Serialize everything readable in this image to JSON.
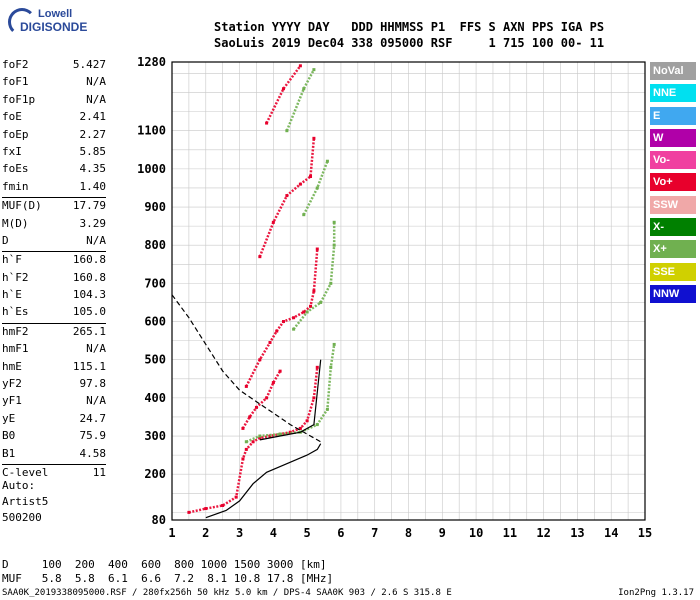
{
  "logo": {
    "line1": "Lowell",
    "line2": "DIGISONDE"
  },
  "header": {
    "line1": "Station YYYY DAY   DDD HHMMSS P1  FFS S AXN PPS IGA PS",
    "line2": "SaoLuis 2019 Dec04 338 095000 RSF     1 715 100 00- 11"
  },
  "params_groups": [
    [
      [
        "foF2",
        "5.427"
      ],
      [
        "foF1",
        "N/A"
      ],
      [
        "foF1p",
        "N/A"
      ],
      [
        "foE",
        "2.41"
      ],
      [
        "foEp",
        "2.27"
      ],
      [
        "fxI",
        "5.85"
      ],
      [
        "foEs",
        "4.35"
      ],
      [
        "fmin",
        "1.40"
      ]
    ],
    [
      [
        "MUF(D)",
        "17.79"
      ],
      [
        "M(D)",
        "3.29"
      ],
      [
        "D",
        "N/A"
      ]
    ],
    [
      [
        "h`F",
        "160.8"
      ],
      [
        "h`F2",
        "160.8"
      ],
      [
        "h`E",
        "104.3"
      ],
      [
        "h`Es",
        "105.0"
      ]
    ],
    [
      [
        "hmF2",
        "265.1"
      ],
      [
        "hmF1",
        "N/A"
      ],
      [
        "hmE",
        "115.1"
      ],
      [
        "yF2",
        "97.8"
      ],
      [
        "yF1",
        "N/A"
      ],
      [
        "yE",
        "24.7"
      ],
      [
        "B0",
        "75.9"
      ],
      [
        "B1",
        "4.58"
      ]
    ],
    [
      [
        "C-level",
        "11"
      ]
    ]
  ],
  "auto": {
    "line1": "Auto:",
    "line2": "Artist5",
    "line3": "500200"
  },
  "legend": [
    {
      "label": "NoVal",
      "color": "#a0a0a0"
    },
    {
      "label": "NNE",
      "color": "#00e0f0"
    },
    {
      "label": "E",
      "color": "#40a8f0"
    },
    {
      "label": "W",
      "color": "#b000a8"
    },
    {
      "label": "Vo-",
      "color": "#f040a0"
    },
    {
      "label": "Vo+",
      "color": "#e8002c"
    },
    {
      "label": "SSW",
      "color": "#f0a8a8"
    },
    {
      "label": "X-",
      "color": "#008000"
    },
    {
      "label": "X+",
      "color": "#70b050"
    },
    {
      "label": "SSE",
      "color": "#d0d000"
    },
    {
      "label": "NNW",
      "color": "#1010d0"
    }
  ],
  "footer": {
    "line1": "D     100  200  400  600  800 1000 1500 3000 [km]",
    "line2": "MUF   5.8  5.8  6.1  6.6  7.2  8.1 10.8 17.8 [MHz]",
    "bottom": "SAA0K_2019338095000.RSF / 280fx256h 50 kHz 5.0 km / DPS-4 SAA0K 903 / 2.6 S 315.8 E",
    "version": "Ion2Png 1.3.17"
  },
  "chart_data": {
    "type": "scatter",
    "xlim": [
      1,
      15
    ],
    "ylim": [
      80,
      1280
    ],
    "x_ticks": [
      1,
      2,
      3,
      4,
      5,
      6,
      7,
      8,
      9,
      10,
      11,
      12,
      13,
      14,
      15
    ],
    "y_ticks": [
      80,
      200,
      300,
      400,
      500,
      600,
      700,
      800,
      900,
      1000,
      1100,
      1280
    ],
    "grid": true,
    "traces": [
      {
        "name": "Vo+",
        "points": [
          [
            1.5,
            100
          ],
          [
            2.0,
            110
          ],
          [
            2.5,
            118
          ],
          [
            2.9,
            140
          ],
          [
            3.1,
            240
          ],
          [
            3.2,
            265
          ],
          [
            3.4,
            285
          ],
          [
            3.6,
            295
          ],
          [
            3.9,
            300
          ],
          [
            4.2,
            305
          ],
          [
            4.5,
            310
          ],
          [
            4.8,
            320
          ],
          [
            5.0,
            340
          ],
          [
            5.2,
            400
          ],
          [
            5.3,
            480
          ]
        ]
      },
      {
        "name": "Vo+",
        "points": [
          [
            3.1,
            320
          ],
          [
            3.3,
            350
          ],
          [
            3.5,
            375
          ],
          [
            3.8,
            400
          ],
          [
            4.0,
            440
          ],
          [
            4.2,
            470
          ]
        ]
      },
      {
        "name": "Vo+",
        "points": [
          [
            3.2,
            430
          ],
          [
            3.6,
            500
          ],
          [
            3.9,
            545
          ],
          [
            4.1,
            575
          ],
          [
            4.3,
            600
          ],
          [
            4.6,
            610
          ],
          [
            4.9,
            625
          ],
          [
            5.1,
            640
          ],
          [
            5.2,
            680
          ],
          [
            5.3,
            790
          ]
        ]
      },
      {
        "name": "Vo+",
        "points": [
          [
            3.6,
            770
          ],
          [
            4.0,
            860
          ],
          [
            4.4,
            930
          ],
          [
            4.8,
            960
          ],
          [
            5.1,
            980
          ],
          [
            5.2,
            1080
          ]
        ]
      },
      {
        "name": "Vo+",
        "points": [
          [
            3.8,
            1120
          ],
          [
            4.3,
            1210
          ],
          [
            4.8,
            1270
          ]
        ]
      },
      {
        "name": "X+",
        "points": [
          [
            3.2,
            285
          ],
          [
            3.6,
            300
          ],
          [
            4.2,
            305
          ],
          [
            4.8,
            310
          ],
          [
            5.3,
            330
          ],
          [
            5.6,
            370
          ],
          [
            5.7,
            480
          ],
          [
            5.8,
            540
          ]
        ]
      },
      {
        "name": "X+",
        "points": [
          [
            4.6,
            580
          ],
          [
            5.0,
            625
          ],
          [
            5.4,
            650
          ],
          [
            5.7,
            700
          ],
          [
            5.8,
            800
          ],
          [
            5.8,
            860
          ]
        ]
      },
      {
        "name": "X+",
        "points": [
          [
            4.9,
            880
          ],
          [
            5.3,
            950
          ],
          [
            5.6,
            1020
          ]
        ]
      },
      {
        "name": "X+",
        "points": [
          [
            4.4,
            1100
          ],
          [
            4.9,
            1210
          ],
          [
            5.2,
            1260
          ]
        ]
      }
    ],
    "curves": [
      {
        "name": "profile",
        "style": "solid",
        "points": [
          [
            2.0,
            86
          ],
          [
            2.6,
            105
          ],
          [
            3.0,
            130
          ],
          [
            3.4,
            175
          ],
          [
            3.8,
            205
          ],
          [
            4.2,
            220
          ],
          [
            4.6,
            235
          ],
          [
            5.0,
            250
          ],
          [
            5.3,
            265
          ],
          [
            5.4,
            280
          ]
        ]
      },
      {
        "name": "model",
        "style": "dashed",
        "points": [
          [
            1.0,
            670
          ],
          [
            1.5,
            610
          ],
          [
            2.0,
            540
          ],
          [
            2.5,
            470
          ],
          [
            3.0,
            420
          ],
          [
            3.5,
            390
          ],
          [
            4.0,
            360
          ],
          [
            4.5,
            330
          ],
          [
            5.0,
            305
          ],
          [
            5.4,
            285
          ]
        ]
      },
      {
        "name": "fit",
        "style": "solid",
        "points": [
          [
            3.6,
            290
          ],
          [
            4.2,
            300
          ],
          [
            4.8,
            310
          ],
          [
            5.2,
            330
          ],
          [
            5.4,
            500
          ]
        ]
      }
    ]
  }
}
